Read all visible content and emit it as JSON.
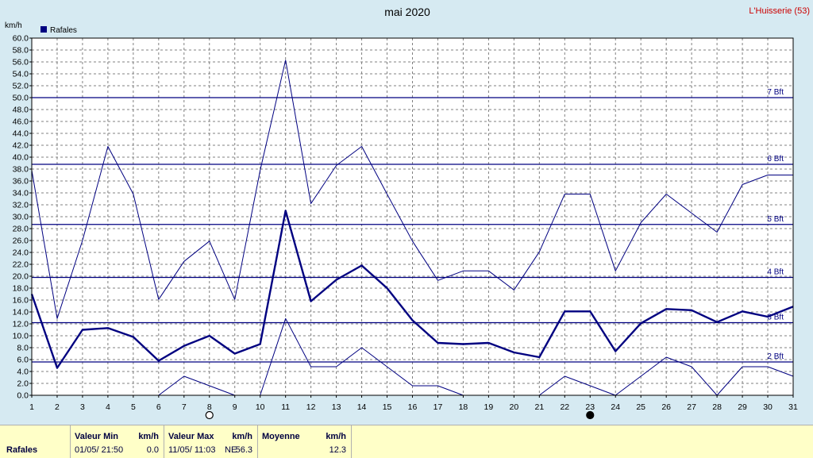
{
  "colors": {
    "background": "#d6eaf2",
    "plot_background": "#ffffff",
    "series": "#000080",
    "grid": "#808080",
    "station": "#cc0000"
  },
  "station": "L'Huisserie (53)",
  "moon_phases": [
    {
      "day": 8,
      "icon": "full-moon-icon"
    },
    {
      "day": 23,
      "icon": "new-moon-icon"
    }
  ],
  "chart_data": {
    "type": "line",
    "title": "mai 2020",
    "ylabel": "km/h",
    "xlim": [
      1,
      31
    ],
    "ylim": [
      0,
      60
    ],
    "grid": true,
    "legend": {
      "position": "top-left",
      "entries": [
        "Rafales"
      ]
    },
    "x": [
      1,
      2,
      3,
      4,
      5,
      6,
      7,
      8,
      9,
      10,
      11,
      12,
      13,
      14,
      15,
      16,
      17,
      18,
      19,
      20,
      21,
      22,
      23,
      24,
      25,
      26,
      27,
      28,
      29,
      30,
      31
    ],
    "x_tick_labels": [
      "1",
      "2",
      "3",
      "4",
      "5",
      "6",
      "7",
      "8",
      "9",
      "10",
      "11",
      "12",
      "13",
      "14",
      "15",
      "16",
      "17",
      "18",
      "19",
      "20",
      "21",
      "22",
      "23",
      "24",
      "25",
      "26",
      "27",
      "28",
      "29",
      "30",
      "31"
    ],
    "y_tick_labels": [
      "0.0",
      "2.0",
      "4.0",
      "6.0",
      "8.0",
      "10.0",
      "12.0",
      "14.0",
      "16.0",
      "18.0",
      "20.0",
      "22.0",
      "24.0",
      "26.0",
      "28.0",
      "30.0",
      "32.0",
      "34.0",
      "36.0",
      "38.0",
      "40.0",
      "42.0",
      "44.0",
      "46.0",
      "48.0",
      "50.0",
      "52.0",
      "54.0",
      "56.0",
      "58.0",
      "60.0"
    ],
    "series": [
      {
        "name": "Rafales",
        "role": "moyenne",
        "values": [
          17.0,
          4.6,
          11.0,
          11.3,
          9.8,
          5.8,
          8.3,
          10.0,
          7.0,
          8.6,
          31.0,
          15.8,
          19.4,
          21.8,
          18.0,
          12.6,
          8.8,
          8.6,
          8.8,
          7.2,
          6.4,
          14.1,
          14.1,
          7.4,
          12.1,
          14.5,
          14.3,
          12.3,
          14.1,
          13.2,
          14.9
        ]
      },
      {
        "role": "max",
        "values": [
          37.8,
          12.9,
          26.0,
          41.8,
          33.8,
          16.1,
          22.5,
          25.9,
          16.1,
          37.8,
          56.3,
          32.2,
          38.6,
          41.8,
          33.8,
          25.9,
          19.3,
          20.9,
          20.9,
          17.7,
          24.1,
          33.8,
          33.8,
          20.9,
          29.0,
          33.8,
          30.6,
          27.4,
          35.4,
          37.0,
          37.0
        ]
      },
      {
        "role": "min",
        "values": [
          null,
          null,
          null,
          null,
          null,
          0.0,
          3.2,
          1.6,
          0.0,
          0.0,
          12.9,
          4.8,
          4.8,
          8.0,
          4.8,
          1.6,
          1.6,
          0.0,
          null,
          null,
          0.0,
          3.2,
          1.6,
          0.0,
          3.2,
          6.4,
          4.8,
          0.0,
          4.8,
          4.8,
          3.2
        ]
      }
    ],
    "reference_lines": [
      {
        "label": "2 Bft",
        "value": 5.6
      },
      {
        "label": "3 Bft",
        "value": 12.2
      },
      {
        "label": "4 Bft",
        "value": 19.8
      },
      {
        "label": "5 Bft",
        "value": 28.7
      },
      {
        "label": "6 Bft",
        "value": 38.8
      },
      {
        "label": "7 Bft",
        "value": 50.0
      }
    ]
  },
  "footer": {
    "row_label": "Rafales",
    "min": {
      "header": "Valeur Min",
      "unit": "km/h",
      "date": "01/05/  21:50",
      "value": "0.0"
    },
    "max": {
      "header": "Valeur Max",
      "unit": "km/h",
      "date": "11/05/  11:03",
      "dir": "NE",
      "value": "56.3"
    },
    "avg": {
      "header": "Moyenne",
      "unit": "km/h",
      "value": "12.3"
    }
  }
}
